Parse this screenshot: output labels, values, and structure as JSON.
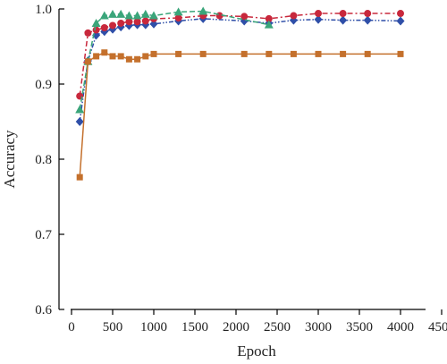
{
  "chart_data": {
    "type": "line",
    "title": "",
    "xlabel": "Epoch",
    "ylabel": "Accuracy",
    "xlim": [
      0,
      4500
    ],
    "ylim": [
      0.6,
      1.0
    ],
    "xticks": [
      0,
      500,
      1000,
      1500,
      2000,
      2500,
      3000,
      3500,
      4000,
      4500
    ],
    "xtick_labels": [
      "0",
      "500",
      "1000",
      "1500",
      "2000",
      "2500",
      "3000",
      "3500",
      "4000",
      "4500"
    ],
    "yticks": [
      0.6,
      0.7,
      0.8,
      0.9,
      1.0
    ],
    "ytick_labels": [
      "0.6",
      "0.7",
      "0.8",
      "0.9",
      "1.0"
    ],
    "grid": false,
    "legend": "none",
    "series": [
      {
        "color": "#2f4fa8",
        "marker": "diamond",
        "line": "dash-dot-dot",
        "x": [
          100,
          200,
          300,
          400,
          500,
          600,
          700,
          800,
          900,
          1000,
          1300,
          1600,
          2100,
          2400,
          2700,
          3000,
          3300,
          3600,
          4000
        ],
        "y": [
          0.85,
          0.931,
          0.965,
          0.97,
          0.973,
          0.976,
          0.978,
          0.979,
          0.979,
          0.98,
          0.984,
          0.987,
          0.984,
          0.981,
          0.985,
          0.986,
          0.985,
          0.985,
          0.984
        ]
      },
      {
        "color": "#c8283c",
        "marker": "circle",
        "line": "dash-dot",
        "x": [
          100,
          200,
          300,
          400,
          500,
          600,
          700,
          800,
          900,
          1000,
          1300,
          1600,
          1800,
          2100,
          2400,
          2700,
          3000,
          3300,
          3600,
          4000
        ],
        "y": [
          0.884,
          0.968,
          0.972,
          0.975,
          0.978,
          0.981,
          0.983,
          0.983,
          0.984,
          0.987,
          0.988,
          0.991,
          0.991,
          0.99,
          0.987,
          0.991,
          0.994,
          0.994,
          0.994,
          0.994
        ]
      },
      {
        "color": "#3aa57a",
        "marker": "triangle",
        "line": "dash",
        "x": [
          100,
          200,
          300,
          400,
          500,
          600,
          700,
          800,
          900,
          1000,
          1300,
          1600,
          2400
        ],
        "y": [
          0.866,
          0.93,
          0.981,
          0.991,
          0.993,
          0.993,
          0.991,
          0.991,
          0.993,
          0.991,
          0.996,
          0.997,
          0.979
        ]
      },
      {
        "color": "#c4702c",
        "marker": "square",
        "line": "solid",
        "x": [
          100,
          200,
          300,
          400,
          500,
          600,
          700,
          800,
          900,
          1000,
          1300,
          1600,
          2100,
          2400,
          2700,
          3000,
          3300,
          3600,
          4000
        ],
        "y": [
          0.776,
          0.93,
          0.937,
          0.942,
          0.937,
          0.937,
          0.933,
          0.933,
          0.937,
          0.94,
          0.94,
          0.94,
          0.94,
          0.94,
          0.94,
          0.94,
          0.94,
          0.94,
          0.94
        ]
      }
    ]
  }
}
